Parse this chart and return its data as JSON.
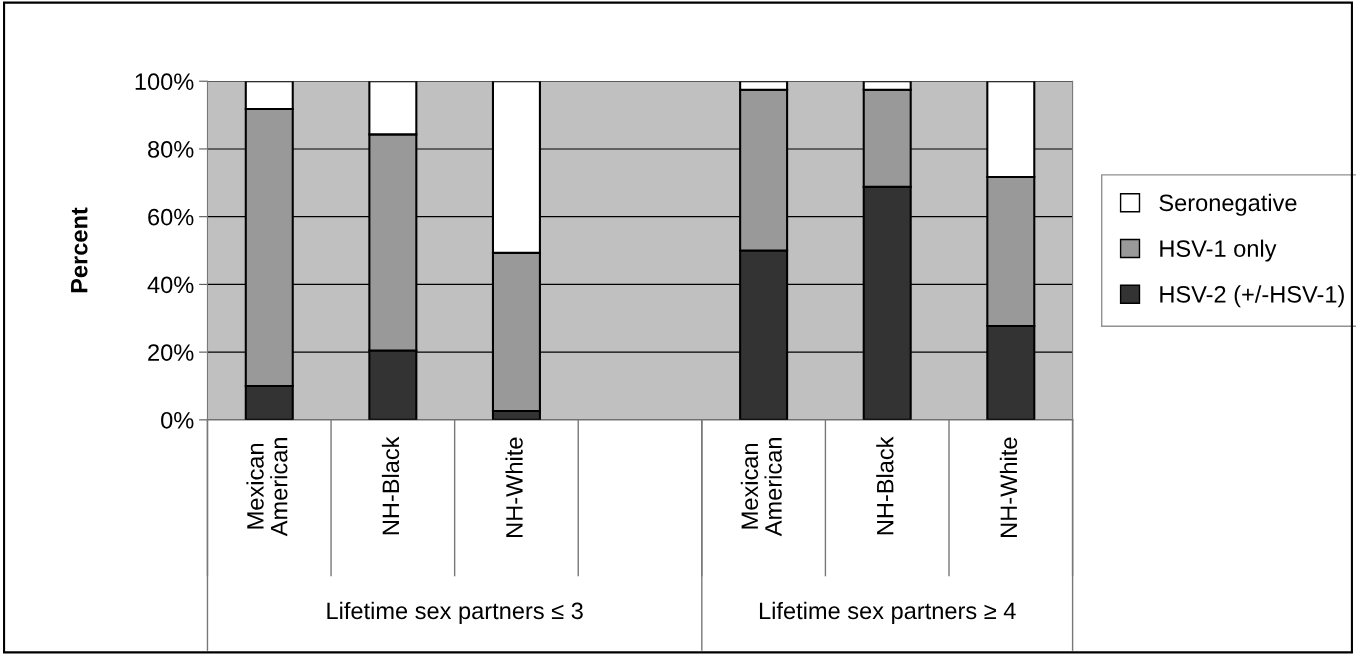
{
  "chart_data": {
    "type": "bar",
    "stacked": true,
    "ylabel": "Percent",
    "categories": [
      "Mexican\nAmerican",
      "NH-Black",
      "NH-White",
      null,
      "Mexican\nAmerican",
      "NH-Black",
      "NH-White"
    ],
    "series": [
      {
        "name": "HSV-2 (+/-HSV-1)",
        "color": "#333333",
        "values": [
          10.0,
          20.5,
          2.6,
          null,
          50.0,
          68.8,
          27.7
        ]
      },
      {
        "name": "HSV-1 only",
        "color": "#999999",
        "values": [
          81.8,
          63.8,
          46.7,
          null,
          47.5,
          28.7,
          44.0
        ]
      },
      {
        "name": "Seronegative",
        "color": "#ffffff",
        "values": [
          8.2,
          15.7,
          50.7,
          null,
          2.5,
          2.5,
          28.3
        ]
      }
    ],
    "ylim": [
      0,
      100
    ],
    "yticks": [
      {
        "value": 0,
        "label": "0%"
      },
      {
        "value": 20,
        "label": "20%"
      },
      {
        "value": 40,
        "label": "40%"
      },
      {
        "value": 60,
        "label": "60%"
      },
      {
        "value": 80,
        "label": "80%"
      },
      {
        "value": 100,
        "label": "100%"
      }
    ],
    "grid": "y",
    "legend": "right",
    "annotations": [
      "Lifetime sex partners ≤ 3",
      "Lifetime sex partners ≥ 4"
    ]
  }
}
